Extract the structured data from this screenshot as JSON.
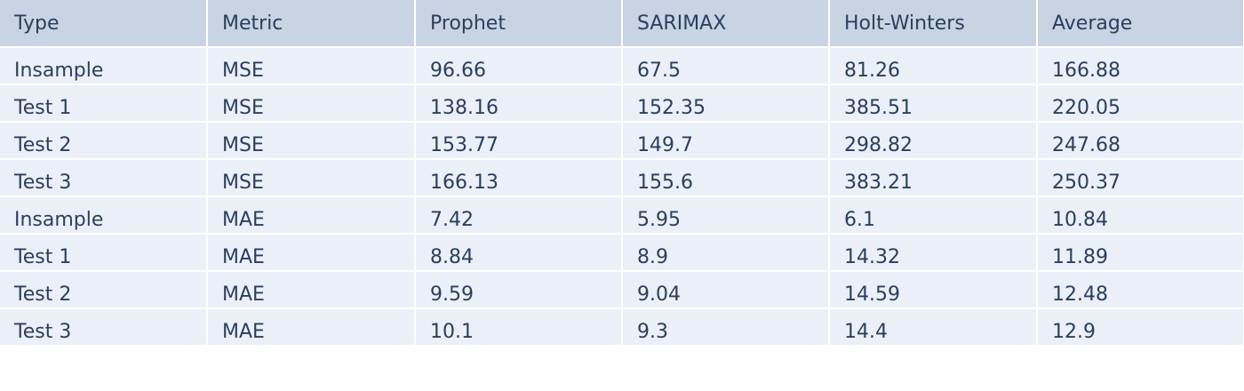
{
  "chart_data": {
    "type": "table",
    "columns": [
      "Type",
      "Metric",
      "Prophet",
      "SARIMAX",
      "Holt-Winters",
      "Average"
    ],
    "rows": [
      [
        "Insample",
        "MSE",
        "96.66",
        "67.5",
        "81.26",
        "166.88"
      ],
      [
        "Test 1",
        "MSE",
        "138.16",
        "152.35",
        "385.51",
        "220.05"
      ],
      [
        "Test 2",
        "MSE",
        "153.77",
        "149.7",
        "298.82",
        "247.68"
      ],
      [
        "Test 3",
        "MSE",
        "166.13",
        "155.6",
        "383.21",
        "250.37"
      ],
      [
        "Insample",
        "MAE",
        "7.42",
        "5.95",
        "6.1",
        "10.84"
      ],
      [
        "Test 1",
        "MAE",
        "8.84",
        "8.9",
        "14.32",
        "11.89"
      ],
      [
        "Test 2",
        "MAE",
        "9.59",
        "9.04",
        "14.59",
        "12.48"
      ],
      [
        "Test 3",
        "MAE",
        "10.1",
        "9.3",
        "14.4",
        "12.9"
      ]
    ]
  },
  "colors": {
    "header_fill": "#c8d4e3",
    "cell_fill": "#ebf0f8",
    "text": "#2a3f5f",
    "grid_line": "#ffffff"
  }
}
